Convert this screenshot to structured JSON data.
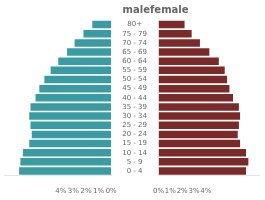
{
  "chart_data": [
    {
      "type": "bar",
      "orientation": "horizontal",
      "title": "male",
      "categories": [
        "80+",
        "75 - 79",
        "70 - 74",
        "65 - 69",
        "60 - 64",
        "55 - 59",
        "50 - 54",
        "45 - 49",
        "40 - 44",
        "35 - 39",
        "30 - 34",
        "25 - 29",
        "20 - 24",
        "15 - 19",
        "10 - 14",
        "5 - 9",
        "0 - 4"
      ],
      "values": [
        1.5,
        2.2,
        2.9,
        3.5,
        4.2,
        4.8,
        5.3,
        5.7,
        6.0,
        6.4,
        6.5,
        6.4,
        6.3,
        6.5,
        7.0,
        7.2,
        7.3
      ],
      "color": "#3a9ba3",
      "xlim": [
        8.5,
        0
      ],
      "xticks": [
        {
          "value": 4,
          "label": "4%"
        },
        {
          "value": 3,
          "label": "3%"
        },
        {
          "value": 2,
          "label": "2%"
        },
        {
          "value": 1,
          "label": "1%"
        },
        {
          "value": 0,
          "label": "0%"
        }
      ],
      "grid": false
    },
    {
      "type": "bar",
      "orientation": "horizontal",
      "title": "female",
      "categories": [
        "80+",
        "75 - 79",
        "70 - 74",
        "65 - 69",
        "60 - 64",
        "55 - 59",
        "50 - 54",
        "45 - 49",
        "40 - 44",
        "35 - 39",
        "30 - 34",
        "25 - 29",
        "20 - 24",
        "15 - 19",
        "10 - 14",
        "5 - 9",
        "0 - 4"
      ],
      "values": [
        2.2,
        2.8,
        3.5,
        4.3,
        5.1,
        5.6,
        5.8,
        6.0,
        6.3,
        6.8,
        6.9,
        6.8,
        6.7,
        6.9,
        7.4,
        7.6,
        7.4
      ],
      "color": "#7b2a2a",
      "xlim": [
        0,
        8.5
      ],
      "xticks": [
        {
          "value": 0,
          "label": "0%"
        },
        {
          "value": 1,
          "label": "1%"
        },
        {
          "value": 2,
          "label": "2%"
        },
        {
          "value": 3,
          "label": "3%"
        },
        {
          "value": 4,
          "label": "4%"
        }
      ],
      "grid": false,
      "tick_labels": "x"
    }
  ]
}
